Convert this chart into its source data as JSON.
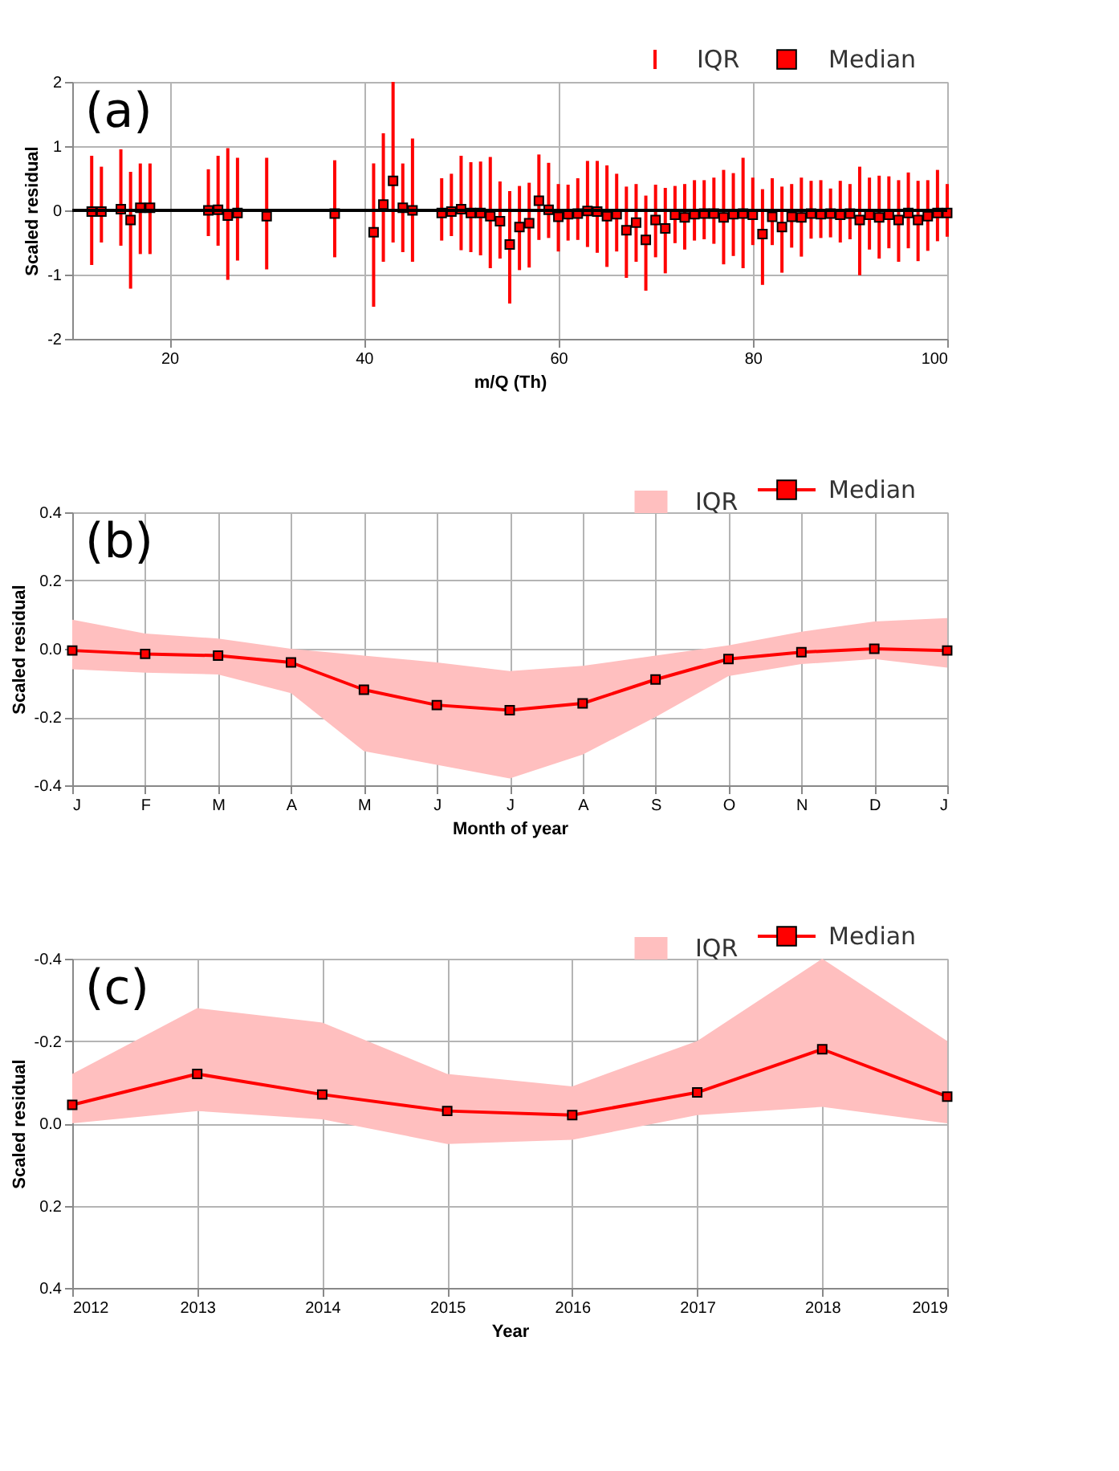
{
  "chart_data": [
    {
      "type": "scatter",
      "xlabel": "m/Q (Th)",
      "ylabel": "Scaled residual",
      "annotations": [
        "(a)",
        "IQR"
      ],
      "x": [
        12,
        13,
        15,
        16,
        17,
        18,
        24,
        25,
        26,
        27,
        30,
        37,
        41,
        42,
        43,
        44,
        45,
        48,
        49,
        50,
        51,
        52,
        53,
        54,
        55,
        56,
        57,
        58,
        59,
        60,
        61,
        62,
        63,
        64,
        65,
        66,
        67,
        68,
        69,
        70,
        71,
        72,
        73,
        74,
        75,
        76,
        77,
        78,
        79,
        80,
        81,
        82,
        83,
        84,
        85,
        86,
        87,
        88,
        89,
        90,
        91,
        92,
        93,
        94,
        95,
        96,
        97,
        98,
        99,
        100
      ],
      "series": [
        {
          "name": "Median",
          "color": "#ff0000",
          "values": [
            -0.02,
            -0.02,
            0.02,
            -0.15,
            0.04,
            0.04,
            0.0,
            0.01,
            -0.08,
            -0.04,
            -0.09,
            -0.05,
            -0.34,
            0.09,
            0.46,
            0.04,
            0.0,
            -0.04,
            -0.02,
            0.02,
            -0.04,
            -0.04,
            -0.09,
            -0.17,
            -0.53,
            -0.26,
            -0.2,
            0.15,
            0.01,
            -0.1,
            -0.06,
            -0.05,
            -0.01,
            -0.02,
            -0.09,
            -0.06,
            -0.31,
            -0.19,
            -0.46,
            -0.15,
            -0.28,
            -0.07,
            -0.11,
            -0.06,
            -0.05,
            -0.05,
            -0.11,
            -0.06,
            -0.05,
            -0.07,
            -0.37,
            -0.1,
            -0.26,
            -0.1,
            -0.11,
            -0.05,
            -0.06,
            -0.05,
            -0.07,
            -0.05,
            -0.15,
            -0.07,
            -0.11,
            -0.07,
            -0.15,
            -0.04,
            -0.15,
            -0.09,
            -0.04,
            -0.04
          ],
          "errors": [
            [
              -0.85,
              0.85
            ],
            [
              -0.5,
              0.68
            ],
            [
              -0.55,
              0.95
            ],
            [
              -1.22,
              0.6
            ],
            [
              -0.68,
              0.73
            ],
            [
              -0.68,
              0.73
            ],
            [
              -0.4,
              0.64
            ],
            [
              -0.55,
              0.85
            ],
            [
              -1.08,
              0.97
            ],
            [
              -0.78,
              0.82
            ],
            [
              -0.92,
              0.82
            ],
            [
              -0.73,
              0.78
            ],
            [
              -1.5,
              0.73
            ],
            [
              -0.8,
              1.2
            ],
            [
              -0.5,
              2.0
            ],
            [
              -0.65,
              0.73
            ],
            [
              -0.8,
              1.12
            ],
            [
              -0.47,
              0.5
            ],
            [
              -0.4,
              0.57
            ],
            [
              -0.62,
              0.85
            ],
            [
              -0.65,
              0.75
            ],
            [
              -0.7,
              0.76
            ],
            [
              -0.9,
              0.83
            ],
            [
              -0.75,
              0.45
            ],
            [
              -1.45,
              0.3
            ],
            [
              -0.93,
              0.38
            ],
            [
              -0.89,
              0.43
            ],
            [
              -0.46,
              0.87
            ],
            [
              -0.43,
              0.74
            ],
            [
              -0.64,
              0.41
            ],
            [
              -0.47,
              0.4
            ],
            [
              -0.46,
              0.5
            ],
            [
              -0.57,
              0.77
            ],
            [
              -0.66,
              0.77
            ],
            [
              -0.88,
              0.7
            ],
            [
              -0.64,
              0.57
            ],
            [
              -1.05,
              0.37
            ],
            [
              -0.8,
              0.41
            ],
            [
              -1.25,
              0.23
            ],
            [
              -0.73,
              0.4
            ],
            [
              -0.98,
              0.35
            ],
            [
              -0.51,
              0.38
            ],
            [
              -0.61,
              0.41
            ],
            [
              -0.47,
              0.47
            ],
            [
              -0.45,
              0.47
            ],
            [
              -0.52,
              0.51
            ],
            [
              -0.84,
              0.63
            ],
            [
              -0.71,
              0.58
            ],
            [
              -0.9,
              0.82
            ],
            [
              -0.54,
              0.51
            ],
            [
              -1.16,
              0.33
            ],
            [
              -0.54,
              0.5
            ],
            [
              -0.97,
              0.37
            ],
            [
              -0.58,
              0.41
            ],
            [
              -0.72,
              0.51
            ],
            [
              -0.44,
              0.46
            ],
            [
              -0.43,
              0.47
            ],
            [
              -0.42,
              0.34
            ],
            [
              -0.5,
              0.46
            ],
            [
              -0.45,
              0.41
            ],
            [
              -1.01,
              0.68
            ],
            [
              -0.61,
              0.51
            ],
            [
              -0.75,
              0.54
            ],
            [
              -0.59,
              0.53
            ],
            [
              -0.8,
              0.47
            ],
            [
              -0.59,
              0.59
            ],
            [
              -0.79,
              0.46
            ],
            [
              -0.63,
              0.47
            ],
            [
              -0.48,
              0.63
            ],
            [
              -0.41,
              0.41
            ]
          ]
        }
      ],
      "xlim": [
        10,
        100
      ],
      "xticks": [
        20,
        40,
        60,
        80,
        100
      ],
      "ylim": [
        -2,
        2
      ],
      "yticks": [
        2,
        1,
        0,
        -1,
        -2
      ],
      "ref_lines": [
        {
          "axis": "y",
          "value": 0,
          "color": "#000000"
        }
      ],
      "grid": true,
      "legend": "top right",
      "marker": "square"
    },
    {
      "type": "line",
      "xlabel": "Month of year",
      "ylabel": "Scaled residual",
      "annotations": [
        "(b)",
        "IQR"
      ],
      "categories": [
        "J",
        "F",
        "M",
        "A",
        "M",
        "J",
        "J",
        "A",
        "S",
        "O",
        "N",
        "D",
        "J"
      ],
      "series": [
        {
          "name": "Median",
          "color": "#ff0000",
          "values": [
            -0.005,
            -0.015,
            -0.02,
            -0.04,
            -0.12,
            -0.165,
            -0.18,
            -0.16,
            -0.09,
            -0.03,
            -0.01,
            0.0,
            -0.005
          ],
          "lower": [
            -0.06,
            -0.07,
            -0.075,
            -0.13,
            -0.3,
            -0.34,
            -0.38,
            -0.31,
            -0.2,
            -0.08,
            -0.045,
            -0.03,
            -0.055
          ],
          "upper": [
            0.085,
            0.045,
            0.03,
            0.0,
            -0.02,
            -0.04,
            -0.065,
            -0.05,
            -0.02,
            0.01,
            0.05,
            0.08,
            0.09
          ]
        }
      ],
      "ylim": [
        -0.4,
        0.4
      ],
      "yticks": [
        0.4,
        0.2,
        {
          "value": 0,
          "label": "0.0"
        },
        -0.2,
        -0.4
      ],
      "grid": true,
      "legend": "top right",
      "marker": "square",
      "line_style": "solid"
    },
    {
      "type": "line",
      "xlabel": "Year",
      "ylabel": "Scaled residual",
      "annotations": [
        "(c)",
        "IQR"
      ],
      "x": [
        2012,
        2013,
        2014,
        2015,
        2016,
        2017,
        2018,
        2019
      ],
      "series": [
        {
          "name": "Median",
          "color": "#ff0000",
          "values": [
            -0.045,
            -0.12,
            -0.07,
            -0.03,
            -0.02,
            -0.075,
            -0.18,
            -0.065
          ],
          "lower": [
            0.0,
            -0.03,
            -0.01,
            0.05,
            0.04,
            -0.02,
            -0.04,
            0.0
          ],
          "upper": [
            -0.12,
            -0.28,
            -0.245,
            -0.12,
            -0.09,
            -0.2,
            -0.4,
            -0.2
          ]
        }
      ],
      "xlim": [
        2012,
        2019
      ],
      "xticks": [
        2012,
        2013,
        2014,
        2015,
        2016,
        2017,
        2018,
        2019
      ],
      "ylim": [
        0.4,
        -0.4
      ],
      "yticks": [
        -0.4,
        -0.2,
        {
          "value": 0,
          "label": "0.0"
        },
        0.2,
        0.4
      ],
      "grid": true,
      "legend": "top right",
      "marker": "square",
      "line_style": "solid"
    }
  ]
}
